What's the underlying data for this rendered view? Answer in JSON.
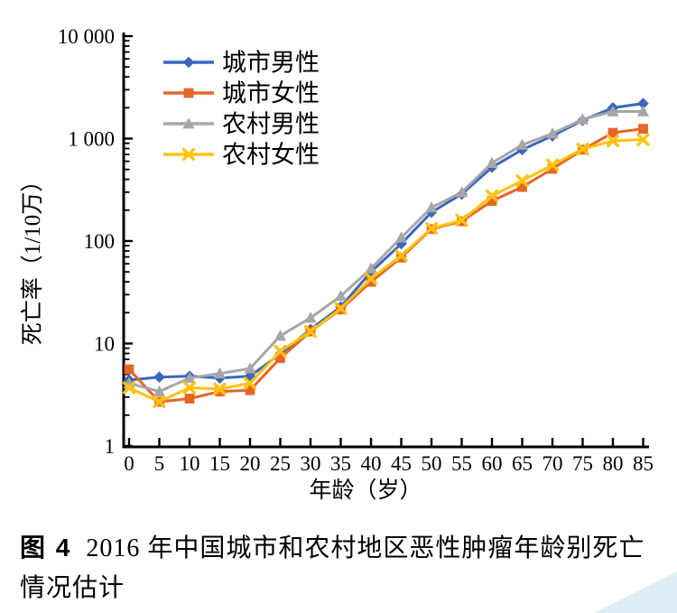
{
  "figure": {
    "caption_label": "图 4",
    "caption_line1": "2016 年中国城市和农村地区恶性肿瘤年龄别死亡",
    "caption_line2": "情况估计"
  },
  "colors": {
    "urban_male": "#3A66BE",
    "urban_female": "#E76528",
    "rural_male": "#A6A6A6",
    "rural_female": "#FFC20E",
    "axis": "#000000",
    "corner_accent": "#DCEFF4"
  },
  "chart_data": {
    "type": "line",
    "title": "",
    "xlabel": "年龄（岁）",
    "ylabel": "死亡率（1/10万）",
    "x": [
      0,
      5,
      10,
      15,
      20,
      25,
      30,
      35,
      40,
      45,
      50,
      55,
      60,
      65,
      70,
      75,
      80,
      85
    ],
    "x_tick_labels": [
      "0",
      "5",
      "10",
      "15",
      "20",
      "25",
      "30",
      "35",
      "40",
      "45",
      "50",
      "55",
      "60",
      "65",
      "70",
      "75",
      "80",
      "85"
    ],
    "y_scale": "log",
    "ylim": [
      1,
      10000
    ],
    "y_ticks": [
      1,
      10,
      100,
      1000,
      10000
    ],
    "y_tick_labels": [
      "1",
      "10",
      "100",
      "1 000",
      "10 000"
    ],
    "grid": false,
    "legend_position": "top-left-inside",
    "series": [
      {
        "id": "urban-male",
        "name": "城市男性",
        "marker": "diamond",
        "color": "#3A66BE",
        "values": [
          4.4,
          4.7,
          4.8,
          4.6,
          4.8,
          7.9,
          13.7,
          22.8,
          50,
          94,
          191,
          287,
          524,
          779,
          1062,
          1505,
          2000,
          2200
        ]
      },
      {
        "id": "urban-female",
        "name": "城市女性",
        "marker": "square",
        "color": "#E76528",
        "values": [
          5.6,
          2.7,
          2.9,
          3.4,
          3.5,
          7.2,
          13.1,
          21.5,
          40,
          69,
          131,
          156,
          246,
          337,
          507,
          779,
          1140,
          1246
        ]
      },
      {
        "id": "rural-male",
        "name": "农村男性",
        "marker": "triangle",
        "color": "#A6A6A6",
        "values": [
          4.1,
          3.4,
          4.6,
          5.1,
          5.7,
          11.9,
          17.8,
          29,
          54,
          108,
          212,
          299,
          577,
          869,
          1120,
          1540,
          1840,
          1840
        ]
      },
      {
        "id": "rural-female",
        "name": "农村女性",
        "marker": "x",
        "color": "#FFC20E",
        "values": [
          3.7,
          2.7,
          3.7,
          3.6,
          4.1,
          8.4,
          13.1,
          22,
          43,
          72,
          133,
          160,
          276,
          388,
          553,
          790,
          951,
          978
        ]
      }
    ]
  }
}
